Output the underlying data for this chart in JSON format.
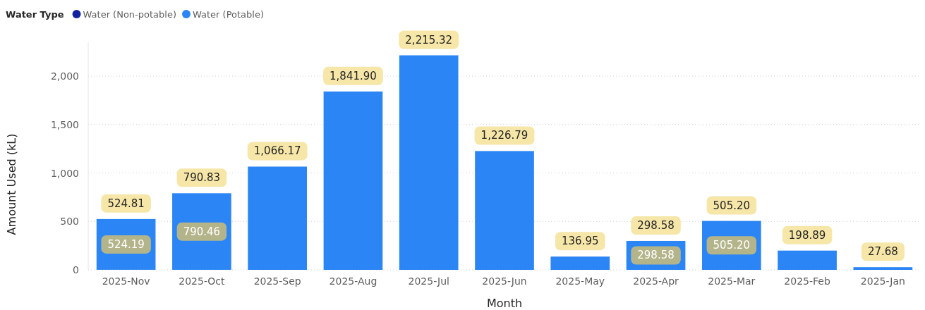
{
  "chart_data": {
    "type": "bar",
    "stacked": true,
    "xlabel": "Month",
    "ylabel": "Amount Used (kL)",
    "legend_title": "Water Type",
    "legend": "top left",
    "grid": "y",
    "categories": [
      "2025-Nov",
      "2025-Oct",
      "2025-Sep",
      "2025-Aug",
      "2025-Jul",
      "2025-Jun",
      "2025-May",
      "2025-Apr",
      "2025-Mar",
      "2025-Feb",
      "2025-Jan"
    ],
    "ylim": [
      0,
      2350
    ],
    "yticks": [
      0,
      500,
      {
        "value": 1000,
        "label": "1,000"
      },
      {
        "value": 1500,
        "label": "1,500"
      },
      {
        "value": 2000,
        "label": "2,000"
      }
    ],
    "series": [
      {
        "name": "Water (Non-potable)",
        "color": "#12239e",
        "values": [
          0.62,
          0.37,
          null,
          null,
          null,
          null,
          null,
          0,
          0,
          null,
          null
        ]
      },
      {
        "name": "Water (Potable)",
        "color": "#2b85f4",
        "values": [
          524.19,
          790.46,
          1066.17,
          1841.9,
          2215.32,
          1226.79,
          136.95,
          298.58,
          505.2,
          198.89,
          27.68
        ],
        "value_labels": [
          "524.19",
          "790.46",
          null,
          null,
          null,
          null,
          null,
          "298.58",
          "505.20",
          null,
          null
        ]
      }
    ],
    "totals": [
      "524.81",
      "790.83",
      "1,066.17",
      "1,841.90",
      "2,215.32",
      "1,226.79",
      "136.95",
      "298.58",
      "505.20",
      "198.89",
      "27.68"
    ]
  }
}
